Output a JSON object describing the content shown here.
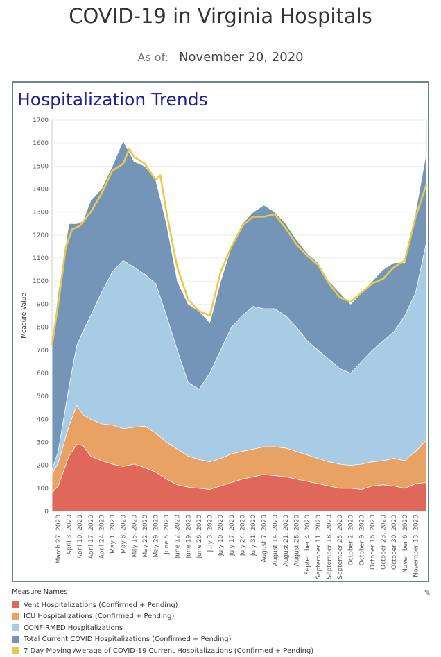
{
  "header": {
    "title": "COVID-19 in Virginia Hospitals",
    "as_of_label": "As of:",
    "as_of_date": "November 20, 2020"
  },
  "panel": {
    "title": "Hospitalization Trends"
  },
  "colors": {
    "vent": "#e0685a",
    "icu": "#e8a264",
    "confirmed": "#a8cbe6",
    "total": "#7595b8",
    "moving_avg": "#e9c94c"
  },
  "chart_data": {
    "type": "area",
    "ylabel": "Measure Value",
    "ylim": [
      0,
      1700
    ],
    "yticks": [
      0,
      100,
      200,
      300,
      400,
      500,
      600,
      700,
      800,
      900,
      1000,
      1100,
      1200,
      1300,
      1400,
      1500,
      1600,
      1700
    ],
    "xlim": [
      "2020-03-23",
      "2020-11-20"
    ],
    "x_tick_labels": [
      "March 27, 2020",
      "April 3, 2020",
      "April 10, 2020",
      "April 17, 2020",
      "April 24, 2020",
      "May 1, 2020",
      "May 8, 2020",
      "May 15, 2020",
      "May 22, 2020",
      "May 29, 2020",
      "June 5, 2020",
      "June 12, 2020",
      "June 19, 2020",
      "June 26, 2020",
      "July 3, 2020",
      "July 10, 2020",
      "July 17, 2020",
      "July 24, 2020",
      "July 31, 2020",
      "August 7, 2020",
      "August 14, 2020",
      "August 21, 2020",
      "August 28, 2020",
      "September 4, 2020",
      "September 11, 2020",
      "September 18, 2020",
      "September 25, 2020",
      "October 2, 2020",
      "October 9, 2020",
      "October 16, 2020",
      "October 23, 2020",
      "October 30, 2020",
      "November 6, 2020",
      "November 13, 2020"
    ],
    "x_tick_dates": [
      "2020-03-27",
      "2020-04-03",
      "2020-04-10",
      "2020-04-17",
      "2020-04-24",
      "2020-05-01",
      "2020-05-08",
      "2020-05-15",
      "2020-05-22",
      "2020-05-29",
      "2020-06-05",
      "2020-06-12",
      "2020-06-19",
      "2020-06-26",
      "2020-07-03",
      "2020-07-10",
      "2020-07-17",
      "2020-07-24",
      "2020-07-31",
      "2020-08-07",
      "2020-08-14",
      "2020-08-21",
      "2020-08-28",
      "2020-09-04",
      "2020-09-11",
      "2020-09-18",
      "2020-09-25",
      "2020-10-02",
      "2020-10-09",
      "2020-10-16",
      "2020-10-23",
      "2020-10-30",
      "2020-11-06",
      "2020-11-13"
    ],
    "grid": true,
    "legend_title": "Measure Names",
    "legend_position": "bottom",
    "series": [
      {
        "name": "Vent Hospitalizations (Confirmed + Pending)",
        "key": "vent",
        "x": [
          "2020-03-23",
          "2020-03-27",
          "2020-04-03",
          "2020-04-08",
          "2020-04-12",
          "2020-04-17",
          "2020-04-24",
          "2020-05-01",
          "2020-05-08",
          "2020-05-15",
          "2020-05-22",
          "2020-05-29",
          "2020-06-05",
          "2020-06-12",
          "2020-06-19",
          "2020-06-26",
          "2020-07-03",
          "2020-07-10",
          "2020-07-17",
          "2020-07-24",
          "2020-07-31",
          "2020-08-07",
          "2020-08-14",
          "2020-08-21",
          "2020-08-28",
          "2020-09-04",
          "2020-09-11",
          "2020-09-18",
          "2020-09-25",
          "2020-10-02",
          "2020-10-09",
          "2020-10-16",
          "2020-10-23",
          "2020-10-30",
          "2020-11-06",
          "2020-11-13",
          "2020-11-20"
        ],
        "values": [
          80,
          110,
          240,
          290,
          285,
          240,
          220,
          205,
          195,
          205,
          190,
          170,
          140,
          115,
          105,
          100,
          95,
          110,
          125,
          140,
          150,
          160,
          155,
          150,
          140,
          130,
          120,
          110,
          100,
          100,
          95,
          110,
          115,
          110,
          100,
          120,
          125
        ]
      },
      {
        "name": "ICU Hospitalizations (Confirmed + Pending)",
        "key": "icu",
        "x": [
          "2020-03-23",
          "2020-03-27",
          "2020-04-03",
          "2020-04-08",
          "2020-04-12",
          "2020-04-17",
          "2020-04-24",
          "2020-05-01",
          "2020-05-08",
          "2020-05-15",
          "2020-05-22",
          "2020-05-29",
          "2020-06-05",
          "2020-06-12",
          "2020-06-19",
          "2020-06-26",
          "2020-07-03",
          "2020-07-10",
          "2020-07-17",
          "2020-07-24",
          "2020-07-31",
          "2020-08-07",
          "2020-08-14",
          "2020-08-21",
          "2020-08-28",
          "2020-09-04",
          "2020-09-11",
          "2020-09-18",
          "2020-09-25",
          "2020-10-02",
          "2020-10-09",
          "2020-10-16",
          "2020-10-23",
          "2020-10-30",
          "2020-11-06",
          "2020-11-13",
          "2020-11-20"
        ],
        "values": [
          160,
          210,
          370,
          460,
          420,
          400,
          380,
          375,
          360,
          365,
          370,
          340,
          300,
          270,
          240,
          225,
          215,
          230,
          250,
          260,
          270,
          280,
          280,
          275,
          260,
          245,
          230,
          215,
          205,
          200,
          205,
          215,
          220,
          230,
          220,
          260,
          310
        ]
      },
      {
        "name": "CONFIRMED Hospitalizations",
        "key": "confirmed",
        "x": [
          "2020-03-23",
          "2020-03-27",
          "2020-04-03",
          "2020-04-08",
          "2020-04-12",
          "2020-04-17",
          "2020-04-24",
          "2020-05-01",
          "2020-05-08",
          "2020-05-15",
          "2020-05-22",
          "2020-05-29",
          "2020-06-05",
          "2020-06-12",
          "2020-06-19",
          "2020-06-26",
          "2020-07-03",
          "2020-07-10",
          "2020-07-17",
          "2020-07-24",
          "2020-07-31",
          "2020-08-07",
          "2020-08-14",
          "2020-08-21",
          "2020-08-28",
          "2020-09-04",
          "2020-09-11",
          "2020-09-18",
          "2020-09-25",
          "2020-10-02",
          "2020-10-09",
          "2020-10-16",
          "2020-10-23",
          "2020-10-30",
          "2020-11-06",
          "2020-11-13",
          "2020-11-20"
        ],
        "values": [
          180,
          260,
          540,
          720,
          780,
          850,
          950,
          1040,
          1090,
          1060,
          1030,
          990,
          850,
          700,
          560,
          530,
          600,
          700,
          800,
          850,
          890,
          880,
          880,
          850,
          800,
          740,
          700,
          660,
          620,
          600,
          650,
          700,
          740,
          780,
          850,
          950,
          1170
        ]
      },
      {
        "name": "Total Current COVID Hospitalizations (Confirmed + Pending)",
        "key": "total",
        "x": [
          "2020-03-23",
          "2020-03-27",
          "2020-04-03",
          "2020-04-08",
          "2020-04-12",
          "2020-04-17",
          "2020-04-24",
          "2020-05-01",
          "2020-05-08",
          "2020-05-15",
          "2020-05-22",
          "2020-05-29",
          "2020-06-05",
          "2020-06-12",
          "2020-06-19",
          "2020-06-26",
          "2020-07-03",
          "2020-07-10",
          "2020-07-17",
          "2020-07-24",
          "2020-07-31",
          "2020-08-07",
          "2020-08-14",
          "2020-08-21",
          "2020-08-28",
          "2020-09-04",
          "2020-09-11",
          "2020-09-18",
          "2020-09-25",
          "2020-10-02",
          "2020-10-09",
          "2020-10-16",
          "2020-10-23",
          "2020-10-30",
          "2020-11-06",
          "2020-11-13",
          "2020-11-20"
        ],
        "values": [
          730,
          950,
          1250,
          1250,
          1260,
          1350,
          1400,
          1500,
          1610,
          1520,
          1500,
          1440,
          1250,
          1000,
          900,
          870,
          820,
          1000,
          1150,
          1250,
          1300,
          1330,
          1300,
          1250,
          1180,
          1120,
          1080,
          1000,
          950,
          900,
          950,
          1000,
          1050,
          1080,
          1080,
          1300,
          1560
        ]
      },
      {
        "name": "7 Day Moving Average of COVID-19 Current Hospitalizations (Confirmed + Pending)",
        "key": "moving_avg",
        "x": [
          "2020-03-23",
          "2020-03-27",
          "2020-04-01",
          "2020-04-05",
          "2020-04-10",
          "2020-04-17",
          "2020-04-24",
          "2020-05-01",
          "2020-05-08",
          "2020-05-12",
          "2020-05-15",
          "2020-05-22",
          "2020-05-29",
          "2020-06-01",
          "2020-06-05",
          "2020-06-12",
          "2020-06-19",
          "2020-06-26",
          "2020-07-03",
          "2020-07-10",
          "2020-07-17",
          "2020-07-24",
          "2020-07-31",
          "2020-08-07",
          "2020-08-14",
          "2020-08-21",
          "2020-08-28",
          "2020-09-04",
          "2020-09-11",
          "2020-09-18",
          "2020-09-25",
          "2020-10-02",
          "2020-10-09",
          "2020-10-16",
          "2020-10-23",
          "2020-10-30",
          "2020-11-06",
          "2020-11-13",
          "2020-11-20"
        ],
        "values": [
          720,
          900,
          1150,
          1225,
          1240,
          1300,
          1380,
          1480,
          1510,
          1575,
          1540,
          1510,
          1440,
          1460,
          1300,
          1060,
          920,
          870,
          850,
          1040,
          1150,
          1240,
          1280,
          1280,
          1290,
          1230,
          1160,
          1110,
          1070,
          990,
          930,
          910,
          950,
          990,
          1010,
          1060,
          1090,
          1280,
          1420
        ]
      }
    ]
  },
  "legend": {
    "title": "Measure Names"
  }
}
